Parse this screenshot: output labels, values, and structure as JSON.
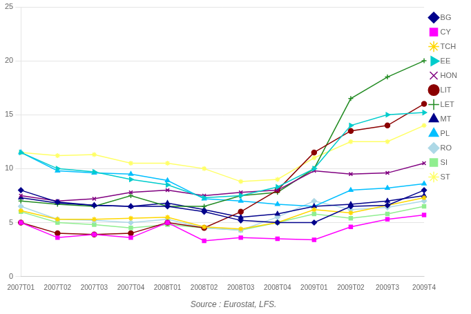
{
  "chart_data": {
    "type": "line",
    "categories": [
      "2007T01",
      "2007T02",
      "2007T03",
      "2007T04",
      "2008T01",
      "2008T02",
      "2008T03",
      "2008T04",
      "2009T01",
      "2009T02",
      "2009T3",
      "2009T4"
    ],
    "series": [
      {
        "name": "BG",
        "color": "#00008B",
        "marker": "diamond",
        "values": [
          8.0,
          6.9,
          6.6,
          6.5,
          6.5,
          6.0,
          5.2,
          5.0,
          5.0,
          6.5,
          6.6,
          8.0
        ]
      },
      {
        "name": "CY",
        "color": "#FF00FF",
        "marker": "square",
        "values": [
          5.0,
          3.6,
          3.9,
          3.6,
          5.0,
          3.3,
          3.6,
          3.5,
          3.4,
          4.6,
          5.3,
          5.7
        ]
      },
      {
        "name": "TCH",
        "color": "#FFD700",
        "marker": "star",
        "values": [
          6.1,
          5.3,
          5.3,
          5.4,
          5.5,
          4.6,
          4.4,
          5.0,
          6.2,
          5.9,
          6.6,
          7.3
        ]
      },
      {
        "name": "EE",
        "color": "#00CCCC",
        "marker": "triangle-right",
        "values": [
          11.5,
          10.0,
          9.7,
          9.0,
          8.5,
          7.3,
          7.5,
          8.3,
          10.0,
          14.0,
          15.0,
          15.2
        ]
      },
      {
        "name": "HON",
        "color": "#800080",
        "marker": "x",
        "values": [
          7.5,
          7.0,
          7.2,
          7.8,
          8.0,
          7.5,
          7.8,
          8.0,
          9.8,
          9.5,
          9.6,
          10.5
        ]
      },
      {
        "name": "LIT",
        "color": "#8B0000",
        "marker": "circle",
        "values": [
          5.0,
          4.0,
          3.9,
          4.0,
          5.0,
          4.5,
          6.0,
          8.0,
          11.5,
          13.5,
          14.0,
          16.0
        ]
      },
      {
        "name": "LET",
        "color": "#228B22",
        "marker": "plus",
        "values": [
          7.0,
          6.7,
          6.5,
          7.5,
          6.5,
          6.5,
          7.5,
          7.8,
          10.0,
          16.5,
          18.5,
          20.0
        ]
      },
      {
        "name": "MT",
        "color": "#00008B",
        "marker": "triangle-up",
        "values": [
          7.3,
          6.8,
          6.6,
          6.5,
          6.8,
          6.2,
          5.5,
          5.8,
          6.5,
          6.7,
          7.0,
          7.5
        ]
      },
      {
        "name": "PL",
        "color": "#00BFFF",
        "marker": "triangle-up",
        "values": [
          11.5,
          9.8,
          9.6,
          9.5,
          8.9,
          7.2,
          7.0,
          6.7,
          6.5,
          8.0,
          8.2,
          8.6
        ]
      },
      {
        "name": "RO",
        "color": "#ADD8E6",
        "marker": "diamond",
        "values": [
          6.5,
          5.3,
          5.2,
          5.0,
          5.3,
          4.5,
          4.3,
          5.5,
          7.0,
          6.2,
          6.4,
          7.0
        ]
      },
      {
        "name": "SI",
        "color": "#90EE90",
        "marker": "square",
        "values": [
          6.0,
          5.0,
          4.8,
          4.5,
          4.8,
          4.5,
          4.3,
          5.0,
          5.8,
          5.4,
          5.8,
          6.5
        ]
      },
      {
        "name": "ST",
        "color": "#FFFF66",
        "marker": "star",
        "values": [
          11.5,
          11.2,
          11.3,
          10.5,
          10.5,
          10.0,
          8.8,
          9.0,
          11.0,
          12.5,
          12.5,
          14.0
        ]
      }
    ],
    "ylim": [
      0,
      25
    ],
    "yticks": [
      0,
      5,
      10,
      15,
      20,
      25
    ],
    "grid": true,
    "legend": "right",
    "annotations": [
      "Source : Eurostat, LFS."
    ]
  }
}
